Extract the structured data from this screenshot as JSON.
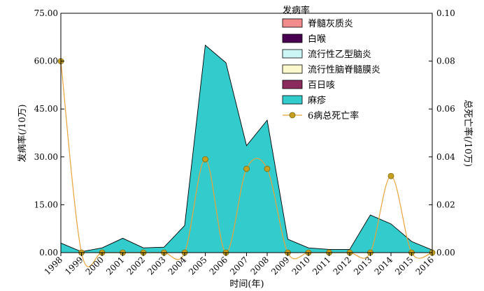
{
  "chart_data": {
    "type": "area",
    "xlabel": "时间(年)",
    "ylabel": "发病率(/10万)",
    "y2label": "总死亡率(/10万)",
    "categories": [
      "1998",
      "1999",
      "2000",
      "2001",
      "2002",
      "2003",
      "2004",
      "2005",
      "2006",
      "2007",
      "2008",
      "2009",
      "2010",
      "2011",
      "2012",
      "2013",
      "2014",
      "2015",
      "2016"
    ],
    "ylim": [
      0,
      75
    ],
    "yticks": [
      "0.00",
      "15.00",
      "30.00",
      "45.00",
      "60.00",
      "75.00"
    ],
    "y2lim": [
      0,
      0.1
    ],
    "y2ticks": [
      "0.00",
      "0.02",
      "0.04",
      "0.06",
      "0.08",
      "0.10"
    ],
    "legend_title": "发病率",
    "legend_position": "top-right",
    "grid": false,
    "series": [
      {
        "name": "脊髓灰质炎",
        "type": "area",
        "color": "#f28b8b",
        "values": [
          0,
          0,
          0,
          0,
          0,
          0,
          0,
          0,
          0,
          0,
          0,
          0,
          0,
          0,
          0,
          0,
          0,
          0,
          0
        ]
      },
      {
        "name": "白喉",
        "type": "area",
        "color": "#4a0050",
        "values": [
          0,
          0,
          0,
          0,
          0,
          0,
          0,
          0,
          0,
          0,
          0,
          0,
          0,
          0,
          0,
          0,
          0,
          0,
          0
        ]
      },
      {
        "name": "流行性乙型脑炎",
        "type": "area",
        "color": "#ccf5f5",
        "values": [
          0,
          0,
          0,
          0,
          0,
          0,
          0,
          0,
          0,
          0,
          0,
          0,
          0,
          0,
          0,
          0,
          0,
          0,
          0
        ]
      },
      {
        "name": "流行性脑脊髓膜炎",
        "type": "area",
        "color": "#fbf8cc",
        "values": [
          0,
          0,
          0,
          0,
          0,
          0,
          0,
          0,
          0,
          0,
          0,
          0,
          0,
          0,
          0,
          0,
          0,
          0,
          0
        ]
      },
      {
        "name": "百日咳",
        "type": "area",
        "color": "#8b2a5c",
        "values": [
          0,
          0,
          0,
          0,
          0,
          0,
          0,
          0,
          0,
          0,
          0,
          0,
          0,
          0,
          0,
          0,
          0,
          0,
          0
        ]
      },
      {
        "name": "麻疹",
        "type": "area",
        "color": "#33cccc",
        "values": [
          3.0,
          0.3,
          1.5,
          4.5,
          1.5,
          1.7,
          8.5,
          65.0,
          59.5,
          33.5,
          41.5,
          4.2,
          1.5,
          1.0,
          1.0,
          11.8,
          9.0,
          3.5,
          0.8
        ]
      },
      {
        "name": "6病总死亡率",
        "type": "line",
        "axis": "right",
        "color": "#e8a33a",
        "marker_color": "#c8a020",
        "values": [
          0.08,
          0,
          0,
          0,
          0,
          0,
          0,
          0.039,
          0,
          0.035,
          0.035,
          0,
          0,
          0,
          0,
          0,
          0.032,
          0,
          0
        ]
      }
    ]
  }
}
